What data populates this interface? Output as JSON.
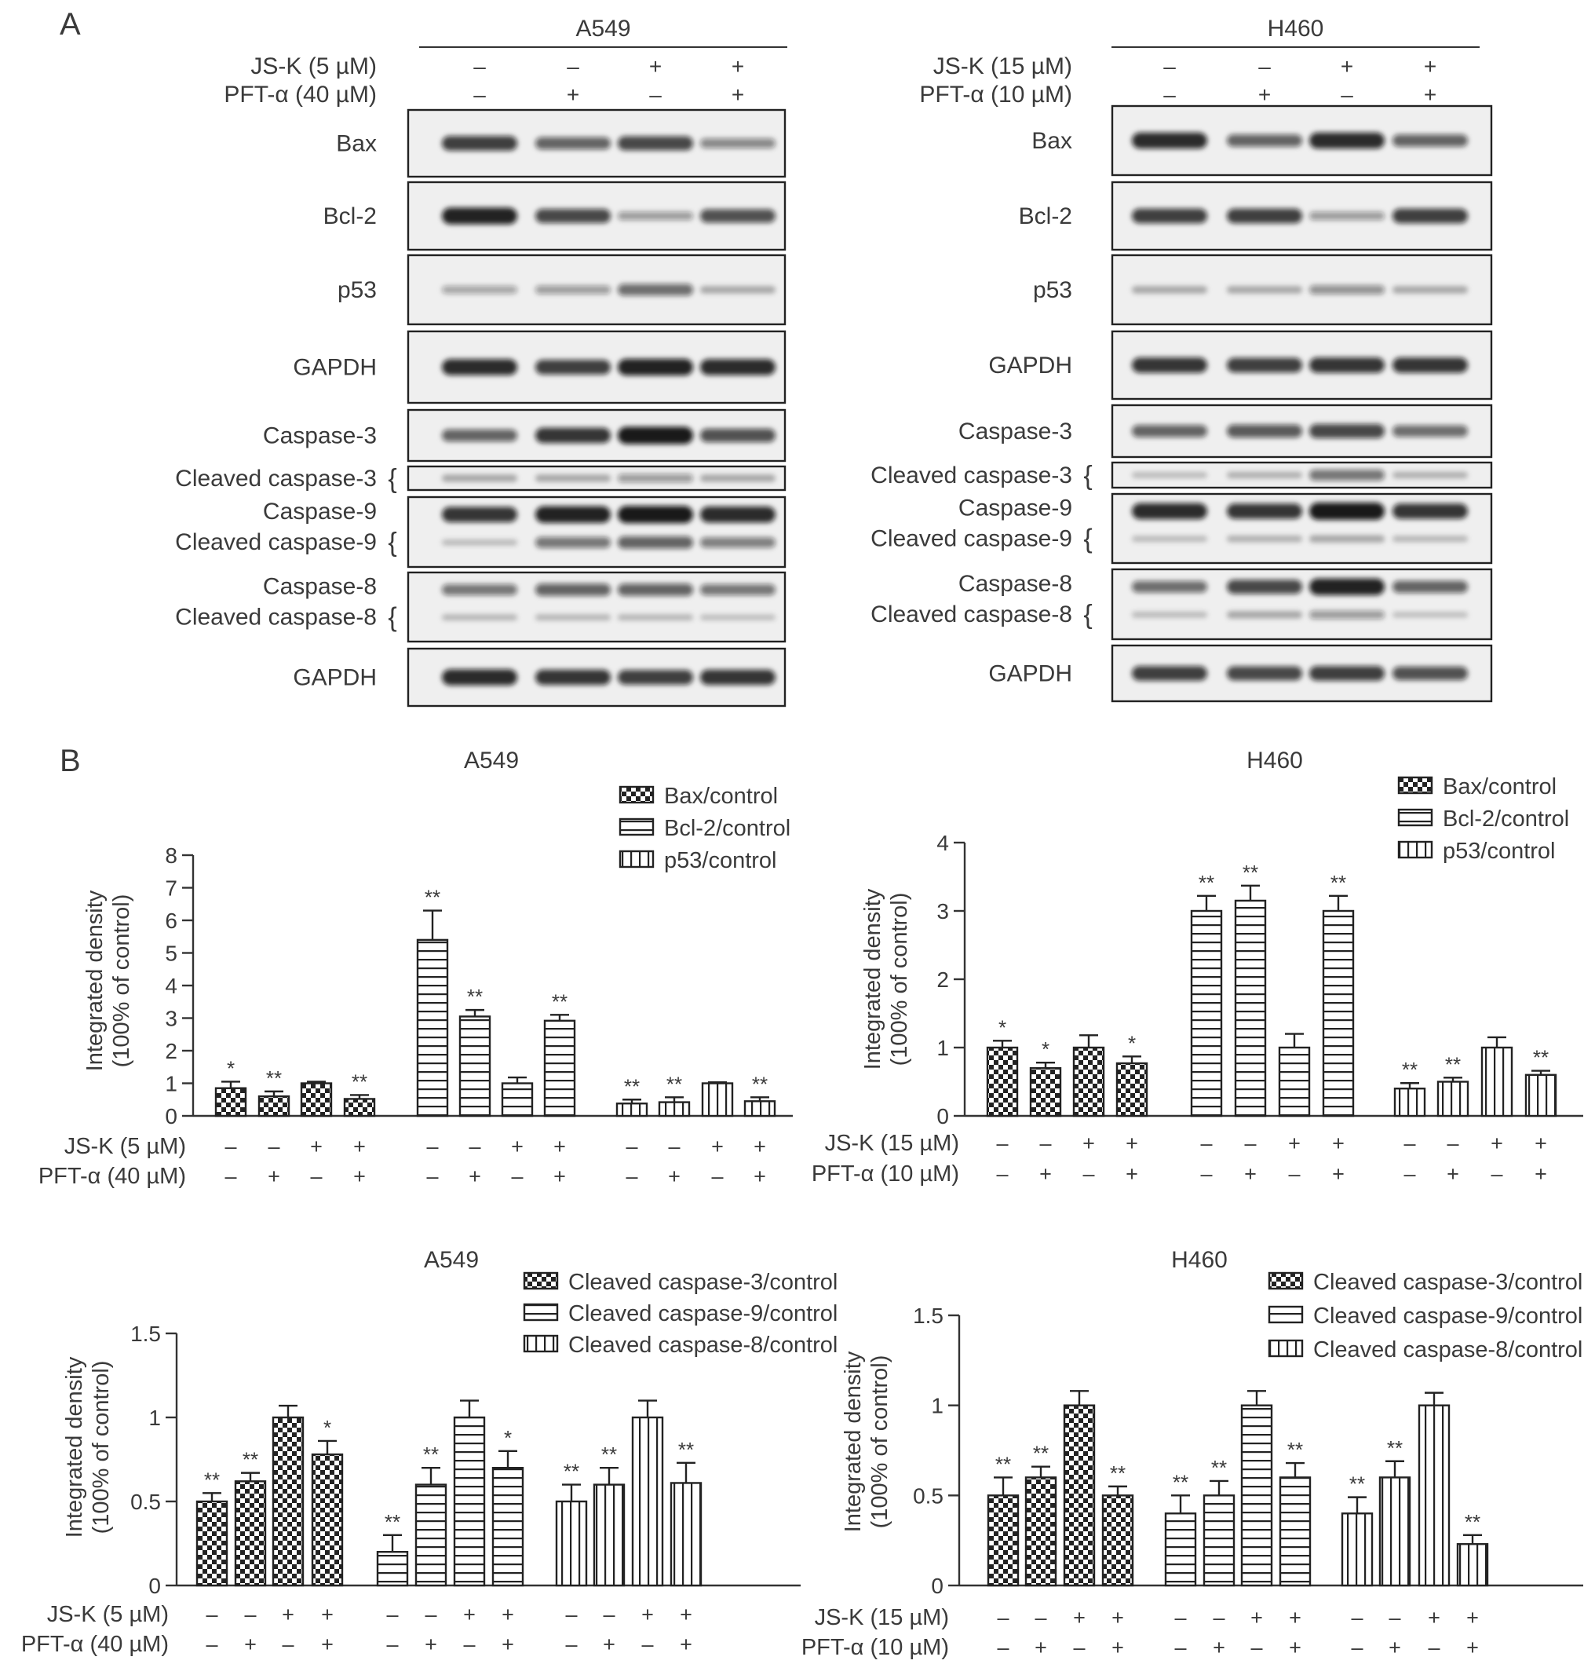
{
  "panel_labels": [
    "A",
    "B"
  ],
  "colors": {
    "text": "#3a3a3a",
    "axis": "#333333",
    "blot_bg": "#eeeeee",
    "band": "#1a1a1a"
  },
  "blots": [
    {
      "cell_line": "A549",
      "treatments": [
        {
          "label": "JS-K (5 µM)",
          "signs": [
            "–",
            "–",
            "+",
            "+"
          ]
        },
        {
          "label": "PFT-α (40 µM)",
          "signs": [
            "–",
            "+",
            "–",
            "+"
          ]
        }
      ],
      "rows": [
        {
          "labels": [
            "Bax"
          ],
          "bands": [
            [
              0.8,
              0.6,
              0.75,
              0.4
            ]
          ]
        },
        {
          "labels": [
            "Bcl-2"
          ],
          "bands": [
            [
              0.95,
              0.75,
              0.3,
              0.7
            ]
          ]
        },
        {
          "labels": [
            "p53"
          ],
          "bands": [
            [
              0.25,
              0.3,
              0.55,
              0.2
            ]
          ]
        },
        {
          "labels": [
            "GAPDH"
          ],
          "bands": [
            [
              0.9,
              0.8,
              0.95,
              0.9
            ]
          ]
        },
        {
          "labels": [
            "Caspase-3"
          ],
          "bands": [
            [
              0.6,
              0.85,
              1.0,
              0.7
            ]
          ]
        },
        {
          "labels": [
            "Cleaved caspase-3"
          ],
          "bracket": true,
          "bands": [
            [
              0.2,
              0.2,
              0.3,
              0.2
            ]
          ]
        },
        {
          "labels": [
            "Caspase-9",
            "Cleaved caspase-9"
          ],
          "bracket": true,
          "bands": [
            [
              0.85,
              0.95,
              1.0,
              0.9
            ],
            [
              0.1,
              0.5,
              0.6,
              0.45
            ]
          ]
        },
        {
          "labels": [
            "Caspase-8",
            "Cleaved caspase-8"
          ],
          "bracket": true,
          "bands": [
            [
              0.5,
              0.6,
              0.6,
              0.5
            ],
            [
              0.12,
              0.12,
              0.12,
              0.08
            ]
          ]
        },
        {
          "labels": [
            "GAPDH"
          ],
          "bands": [
            [
              0.9,
              0.85,
              0.8,
              0.85
            ]
          ]
        }
      ]
    },
    {
      "cell_line": "H460",
      "treatments": [
        {
          "label": "JS-K (15 µM)",
          "signs": [
            "–",
            "–",
            "+",
            "+"
          ]
        },
        {
          "label": "PFT-α (10 µM)",
          "signs": [
            "–",
            "+",
            "–",
            "+"
          ]
        }
      ],
      "rows": [
        {
          "labels": [
            "Bax"
          ],
          "bands": [
            [
              0.9,
              0.6,
              0.9,
              0.6
            ]
          ]
        },
        {
          "labels": [
            "Bcl-2"
          ],
          "bands": [
            [
              0.8,
              0.8,
              0.3,
              0.8
            ]
          ]
        },
        {
          "labels": [
            "p53"
          ],
          "bands": [
            [
              0.2,
              0.2,
              0.35,
              0.2
            ]
          ]
        },
        {
          "labels": [
            "GAPDH"
          ],
          "bands": [
            [
              0.85,
              0.8,
              0.85,
              0.85
            ]
          ]
        },
        {
          "labels": [
            "Caspase-3"
          ],
          "bands": [
            [
              0.6,
              0.65,
              0.75,
              0.55
            ]
          ]
        },
        {
          "labels": [
            "Cleaved caspase-3"
          ],
          "bracket": true,
          "bands": [
            [
              0.1,
              0.15,
              0.5,
              0.15
            ]
          ]
        },
        {
          "labels": [
            "Caspase-9",
            "Cleaved caspase-9"
          ],
          "bracket": true,
          "bands": [
            [
              0.9,
              0.85,
              1.0,
              0.85
            ],
            [
              0.1,
              0.15,
              0.2,
              0.12
            ]
          ]
        },
        {
          "labels": [
            "Caspase-8",
            "Cleaved caspase-8"
          ],
          "bracket": true,
          "bands": [
            [
              0.55,
              0.75,
              0.95,
              0.6
            ],
            [
              0.1,
              0.2,
              0.3,
              0.08
            ]
          ]
        },
        {
          "labels": [
            "GAPDH"
          ],
          "bands": [
            [
              0.8,
              0.75,
              0.8,
              0.7
            ]
          ]
        }
      ]
    }
  ],
  "chart_data": [
    {
      "type": "bar",
      "title": "A549",
      "ylabel": "Integrated density (100% of control)",
      "ylim": [
        0,
        8
      ],
      "yticks": [
        0,
        1,
        2,
        3,
        4,
        5,
        6,
        7,
        8
      ],
      "legend_position": "top-right",
      "treatments": [
        {
          "label": "JS-K (5 µM)",
          "signs": [
            "–",
            "–",
            "+",
            "+"
          ]
        },
        {
          "label": "PFT-α (40 µM)",
          "signs": [
            "–",
            "+",
            "–",
            "+"
          ]
        }
      ],
      "series": [
        {
          "name": "Bax/control",
          "pattern": "checker",
          "values": [
            0.85,
            0.6,
            1.0,
            0.52
          ],
          "errors": [
            0.2,
            0.15,
            0.05,
            0.12
          ],
          "marks": [
            "*",
            "**",
            "",
            "**"
          ]
        },
        {
          "name": "Bcl-2/control",
          "pattern": "hlines",
          "values": [
            5.4,
            3.05,
            1.0,
            2.92
          ],
          "errors": [
            0.9,
            0.2,
            0.18,
            0.18
          ],
          "marks": [
            "**",
            "**",
            "",
            "**"
          ]
        },
        {
          "name": "p53/control",
          "pattern": "vlines",
          "values": [
            0.38,
            0.42,
            1.0,
            0.45
          ],
          "errors": [
            0.12,
            0.15,
            0.03,
            0.12
          ],
          "marks": [
            "**",
            "**",
            "",
            "**"
          ]
        }
      ]
    },
    {
      "type": "bar",
      "title": "H460",
      "ylabel": "Integrated density (100% of control)",
      "ylim": [
        0,
        4
      ],
      "yticks": [
        0,
        1,
        2,
        3,
        4
      ],
      "legend_position": "top-right",
      "treatments": [
        {
          "label": "JS-K (15 µM)",
          "signs": [
            "–",
            "–",
            "+",
            "+"
          ]
        },
        {
          "label": "PFT-α (10 µM)",
          "signs": [
            "–",
            "+",
            "–",
            "+"
          ]
        }
      ],
      "series": [
        {
          "name": "Bax/control",
          "pattern": "checker",
          "values": [
            1.0,
            0.7,
            1.0,
            0.77
          ],
          "errors": [
            0.1,
            0.08,
            0.18,
            0.1
          ],
          "marks": [
            "*",
            "*",
            "",
            "*"
          ]
        },
        {
          "name": "Bcl-2/control",
          "pattern": "hlines",
          "values": [
            3.0,
            3.15,
            1.0,
            3.0
          ],
          "errors": [
            0.22,
            0.22,
            0.2,
            0.22
          ],
          "marks": [
            "**",
            "**",
            "",
            "**"
          ]
        },
        {
          "name": "p53/control",
          "pattern": "vlines",
          "values": [
            0.4,
            0.5,
            1.0,
            0.6
          ],
          "errors": [
            0.08,
            0.06,
            0.15,
            0.06
          ],
          "marks": [
            "**",
            "**",
            "",
            "**"
          ]
        }
      ]
    },
    {
      "type": "bar",
      "title": "A549",
      "ylabel": "Integrated density (100% of control)",
      "ylim": [
        0,
        1.5
      ],
      "yticks": [
        0,
        0.5,
        1,
        1.5
      ],
      "legend_position": "top-right",
      "treatments": [
        {
          "label": "JS-K (5 µM)",
          "signs": [
            "–",
            "–",
            "+",
            "+"
          ]
        },
        {
          "label": "PFT-α (40 µM)",
          "signs": [
            "–",
            "+",
            "–",
            "+"
          ]
        }
      ],
      "series": [
        {
          "name": "Cleaved caspase-3/control",
          "pattern": "checker",
          "values": [
            0.5,
            0.62,
            1.0,
            0.78
          ],
          "errors": [
            0.05,
            0.05,
            0.07,
            0.08
          ],
          "marks": [
            "**",
            "**",
            "",
            "*"
          ]
        },
        {
          "name": "Cleaved caspase-9/control",
          "pattern": "hlines",
          "values": [
            0.2,
            0.6,
            1.0,
            0.7
          ],
          "errors": [
            0.1,
            0.1,
            0.1,
            0.1
          ],
          "marks": [
            "**",
            "**",
            "",
            "*"
          ]
        },
        {
          "name": "Cleaved caspase-8/control",
          "pattern": "vlines",
          "values": [
            0.5,
            0.6,
            1.0,
            0.61
          ],
          "errors": [
            0.1,
            0.1,
            0.1,
            0.12
          ],
          "marks": [
            "**",
            "**",
            "",
            "**"
          ]
        }
      ]
    },
    {
      "type": "bar",
      "title": "H460",
      "ylabel": "Integrated density (100% of control)",
      "ylim": [
        0,
        1.5
      ],
      "yticks": [
        0,
        0.5,
        1,
        1.5
      ],
      "legend_position": "top-right",
      "treatments": [
        {
          "label": "JS-K (15 µM)",
          "signs": [
            "–",
            "–",
            "+",
            "+"
          ]
        },
        {
          "label": "PFT-α (10 µM)",
          "signs": [
            "–",
            "+",
            "–",
            "+"
          ]
        }
      ],
      "series": [
        {
          "name": "Cleaved caspase-3/control",
          "pattern": "checker",
          "values": [
            0.5,
            0.6,
            1.0,
            0.5
          ],
          "errors": [
            0.1,
            0.06,
            0.08,
            0.05
          ],
          "marks": [
            "**",
            "**",
            "",
            "**"
          ]
        },
        {
          "name": "Cleaved caspase-9/control",
          "pattern": "hlines",
          "values": [
            0.4,
            0.5,
            1.0,
            0.6
          ],
          "errors": [
            0.1,
            0.08,
            0.08,
            0.08
          ],
          "marks": [
            "**",
            "**",
            "",
            "**"
          ]
        },
        {
          "name": "Cleaved caspase-8/control",
          "pattern": "vlines",
          "values": [
            0.4,
            0.6,
            1.0,
            0.23
          ],
          "errors": [
            0.09,
            0.09,
            0.07,
            0.05
          ],
          "marks": [
            "**",
            "**",
            "",
            "**"
          ]
        }
      ]
    }
  ]
}
